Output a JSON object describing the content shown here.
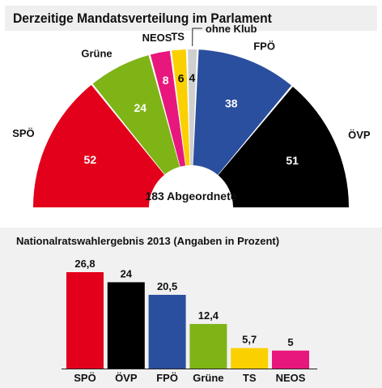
{
  "chart_data": [
    {
      "type": "pie",
      "title": "Derzeitige Mandatsverteilung im Parlament",
      "center_label": "183 Abgeordnete",
      "categories": [
        "SPÖ",
        "Grüne",
        "NEOS",
        "TS",
        "ohne Klub",
        "FPÖ",
        "ÖVP"
      ],
      "values": [
        52,
        24,
        8,
        6,
        4,
        38,
        51
      ],
      "colors": [
        "#e3001b",
        "#7fb417",
        "#e8177d",
        "#fbd000",
        "#cfcfcf",
        "#2a4f9e",
        "#000000"
      ],
      "value_text_colors": [
        "#ffffff",
        "#ffffff",
        "#ffffff",
        "#111111",
        "#111111",
        "#ffffff",
        "#ffffff"
      ]
    },
    {
      "type": "bar",
      "title": "Nationalratswahlergebnis 2013 (Angaben in Prozent)",
      "categories": [
        "SPÖ",
        "ÖVP",
        "FPÖ",
        "Grüne",
        "TS",
        "NEOS"
      ],
      "values": [
        26.8,
        24,
        20.5,
        12.4,
        5.7,
        5
      ],
      "value_labels": [
        "26,8",
        "24",
        "20,5",
        "12,4",
        "5,7",
        "5"
      ],
      "colors": [
        "#e3001b",
        "#000000",
        "#2a4f9e",
        "#7fb417",
        "#fbd000",
        "#e8177d"
      ],
      "ylim": [
        0,
        26.8
      ]
    }
  ]
}
